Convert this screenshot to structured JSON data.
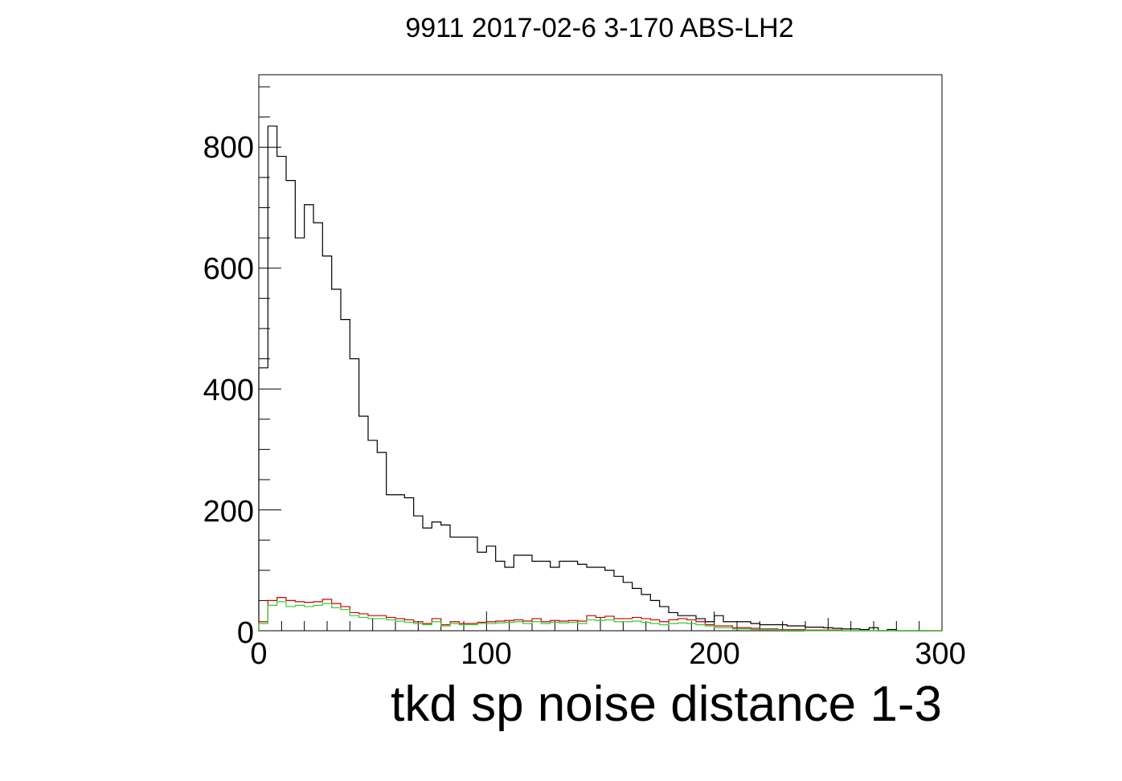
{
  "chart_data": {
    "type": "histogram",
    "title": "9911 2017-02-6 3-170 ABS-LH2",
    "xlabel": "tkd sp noise distance 1-3",
    "ylabel": "",
    "xlim": [
      0,
      300
    ],
    "ylim": [
      0,
      920
    ],
    "x_ticks": [
      0,
      100,
      200,
      300
    ],
    "x_tick_labels": [
      "0",
      "100",
      "200",
      "300"
    ],
    "y_ticks": [
      0,
      200,
      400,
      600,
      800
    ],
    "y_tick_labels": [
      "0",
      "200",
      "400",
      "600",
      "800"
    ],
    "bin_width": 4,
    "grid": false,
    "legend": "none",
    "series": [
      {
        "color": "#000000",
        "values": [
          435,
          835,
          785,
          745,
          650,
          705,
          675,
          620,
          565,
          515,
          450,
          355,
          315,
          295,
          225,
          225,
          220,
          190,
          170,
          180,
          175,
          155,
          155,
          155,
          130,
          140,
          115,
          105,
          125,
          125,
          115,
          115,
          105,
          115,
          115,
          110,
          105,
          105,
          100,
          90,
          80,
          70,
          60,
          50,
          40,
          30,
          25,
          25,
          20,
          15,
          25,
          15,
          15,
          15,
          12,
          10,
          10,
          10,
          8,
          8,
          6,
          6,
          5,
          4,
          3,
          3,
          2,
          5,
          0,
          2,
          0,
          0,
          0,
          0,
          0
        ]
      },
      {
        "color": "#cc0000",
        "values": [
          15,
          50,
          55,
          50,
          48,
          47,
          48,
          52,
          45,
          40,
          30,
          28,
          25,
          25,
          22,
          20,
          18,
          15,
          12,
          20,
          10,
          15,
          12,
          12,
          14,
          15,
          16,
          17,
          18,
          16,
          20,
          15,
          17,
          16,
          17,
          16,
          25,
          22,
          24,
          20,
          20,
          22,
          20,
          18,
          15,
          18,
          20,
          18,
          15,
          10,
          8,
          8,
          5,
          5,
          4,
          3,
          3,
          2,
          2,
          2,
          1,
          1,
          1,
          1,
          0,
          0,
          0,
          0,
          0,
          0,
          0,
          0,
          0,
          0,
          0
        ]
      },
      {
        "color": "#33cc33",
        "values": [
          12,
          42,
          48,
          40,
          42,
          40,
          42,
          45,
          38,
          35,
          25,
          22,
          20,
          20,
          18,
          16,
          14,
          12,
          10,
          15,
          8,
          12,
          10,
          10,
          12,
          12,
          13,
          14,
          15,
          12,
          15,
          12,
          14,
          13,
          14,
          12,
          18,
          17,
          18,
          15,
          15,
          16,
          14,
          12,
          10,
          12,
          13,
          12,
          10,
          8,
          5,
          5,
          3,
          3,
          2,
          2,
          2,
          1,
          1,
          1,
          0,
          0,
          0,
          0,
          0,
          0,
          0,
          0,
          0,
          0,
          0,
          0,
          0,
          0,
          0
        ]
      }
    ]
  }
}
